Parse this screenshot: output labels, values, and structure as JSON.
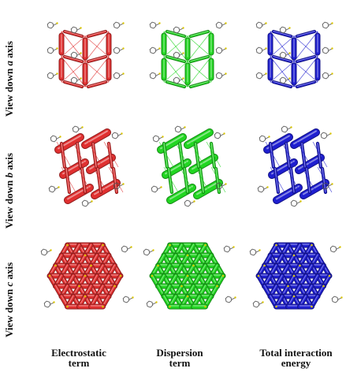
{
  "rows": [
    {
      "prefix": "View down ",
      "axis": "a",
      "suffix": " axis"
    },
    {
      "prefix": "View down ",
      "axis": "b",
      "suffix": " axis"
    },
    {
      "prefix": "View down ",
      "axis": "c",
      "suffix": " axis"
    }
  ],
  "columns": [
    {
      "line1": "Electrostatic",
      "line2": "term",
      "color": "#e03030"
    },
    {
      "line1": "Dispersion",
      "line2": "term",
      "color": "#22d622"
    },
    {
      "line1": "Total interaction",
      "line2": "energy",
      "color": "#1f1fd0"
    }
  ],
  "molecule_color": "#555555"
}
